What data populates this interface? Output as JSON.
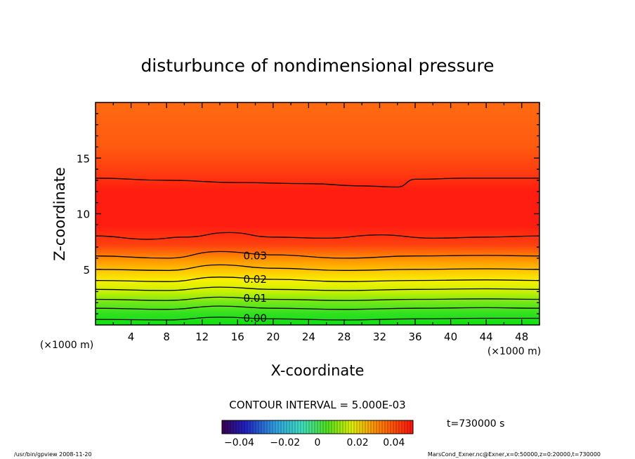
{
  "chart_data": {
    "type": "contour",
    "title": "disturbunce of nondimensional pressure",
    "xlabel": "X-coordinate",
    "ylabel": "Z-coordinate",
    "x_unit_left": "(×1000 m)",
    "x_unit_right": "(×1000 m)",
    "xlim": [
      0,
      50
    ],
    "ylim": [
      0,
      20
    ],
    "x_ticks": [
      4,
      8,
      12,
      16,
      20,
      24,
      28,
      32,
      36,
      40,
      44,
      48
    ],
    "y_ticks": [
      5,
      10,
      15
    ],
    "contour_interval_text": "CONTOUR INTERVAL = 5.000E-03",
    "contour_labels": [
      {
        "text": "0.03",
        "x": 16.5,
        "z": 6.2
      },
      {
        "text": "0.02",
        "x": 16.5,
        "z": 4.1
      },
      {
        "text": "0.01",
        "x": 16.5,
        "z": 2.4
      },
      {
        "text": "0.00",
        "x": 16.5,
        "z": 0.6
      }
    ],
    "contour_lines": [
      {
        "level": 0.0,
        "points": [
          [
            0,
            0.5
          ],
          [
            8,
            0.45
          ],
          [
            14,
            0.7
          ],
          [
            20,
            0.55
          ],
          [
            28,
            0.45
          ],
          [
            36,
            0.55
          ],
          [
            44,
            0.6
          ],
          [
            50,
            0.6
          ]
        ]
      },
      {
        "level": 0.005,
        "points": [
          [
            0,
            1.5
          ],
          [
            8,
            1.4
          ],
          [
            14,
            1.7
          ],
          [
            20,
            1.5
          ],
          [
            28,
            1.4
          ],
          [
            36,
            1.5
          ],
          [
            44,
            1.55
          ],
          [
            50,
            1.5
          ]
        ]
      },
      {
        "level": 0.01,
        "points": [
          [
            0,
            2.3
          ],
          [
            8,
            2.2
          ],
          [
            14,
            2.5
          ],
          [
            20,
            2.3
          ],
          [
            28,
            2.2
          ],
          [
            36,
            2.3
          ],
          [
            44,
            2.35
          ],
          [
            50,
            2.3
          ]
        ]
      },
      {
        "level": 0.015,
        "points": [
          [
            0,
            3.2
          ],
          [
            8,
            3.1
          ],
          [
            14,
            3.4
          ],
          [
            20,
            3.2
          ],
          [
            28,
            3.1
          ],
          [
            36,
            3.2
          ],
          [
            44,
            3.25
          ],
          [
            50,
            3.2
          ]
        ]
      },
      {
        "level": 0.02,
        "points": [
          [
            0,
            4.0
          ],
          [
            8,
            3.9
          ],
          [
            14,
            4.3
          ],
          [
            20,
            4.1
          ],
          [
            28,
            3.9
          ],
          [
            36,
            4.0
          ],
          [
            44,
            4.05
          ],
          [
            50,
            4.0
          ]
        ]
      },
      {
        "level": 0.025,
        "points": [
          [
            0,
            5.0
          ],
          [
            8,
            4.9
          ],
          [
            14,
            5.4
          ],
          [
            20,
            5.1
          ],
          [
            28,
            4.9
          ],
          [
            36,
            5.0
          ],
          [
            44,
            5.05
          ],
          [
            50,
            5.0
          ]
        ]
      },
      {
        "level": 0.03,
        "points": [
          [
            0,
            6.2
          ],
          [
            8,
            6.0
          ],
          [
            14,
            6.6
          ],
          [
            20,
            6.3
          ],
          [
            28,
            6.0
          ],
          [
            36,
            6.2
          ],
          [
            44,
            6.25
          ],
          [
            50,
            6.2
          ]
        ]
      },
      {
        "level": 0.035,
        "points": [
          [
            0,
            8.0
          ],
          [
            6,
            7.7
          ],
          [
            10,
            7.9
          ],
          [
            15,
            8.3
          ],
          [
            20,
            7.9
          ],
          [
            26,
            7.8
          ],
          [
            32,
            8.1
          ],
          [
            38,
            7.8
          ],
          [
            44,
            7.9
          ],
          [
            50,
            8.0
          ]
        ]
      },
      {
        "level": 0.035,
        "points": [
          [
            0,
            13.2
          ],
          [
            8,
            13.0
          ],
          [
            16,
            12.8
          ],
          [
            24,
            12.7
          ],
          [
            30,
            12.5
          ],
          [
            34,
            12.4
          ],
          [
            36,
            13.1
          ],
          [
            42,
            13.2
          ],
          [
            50,
            13.2
          ]
        ]
      }
    ],
    "colorbar": {
      "tick_labels": [
        "−0.04",
        "−0.02",
        "0",
        "0.02",
        "0.04"
      ],
      "tick_values": [
        -0.04,
        -0.02,
        0,
        0.02,
        0.04
      ],
      "range": [
        -0.05,
        0.05
      ]
    },
    "time_label": "t=730000 s",
    "footer_left": "/usr/bin/gpview   2008-11-20",
    "footer_right": "MarsCond_Exner.nc@Exner,x=0:50000,z=0:20000,t=730000"
  }
}
